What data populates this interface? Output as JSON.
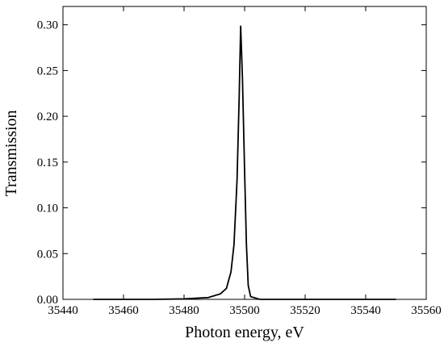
{
  "chart_data": {
    "type": "line",
    "x_label": "Photon energy, eV",
    "y_label": "Transmission",
    "xlim": [
      35440,
      35560
    ],
    "xticks": [
      35440,
      35460,
      35480,
      35500,
      35520,
      35540,
      35560
    ],
    "ylim": [
      0,
      0.32
    ],
    "yticks": [
      {
        "value": 0,
        "label": "0.00"
      },
      {
        "value": 0.05,
        "label": "0.05"
      },
      {
        "value": 0.1,
        "label": "0.10"
      },
      {
        "value": 0.15,
        "label": "0.15"
      },
      {
        "value": 0.2,
        "label": "0.20"
      },
      {
        "value": 0.25,
        "label": "0.25"
      },
      {
        "value": 0.3,
        "label": "0.30"
      }
    ],
    "series": [
      {
        "color": "#000000",
        "x": [
          35450,
          35470,
          35480,
          35488,
          35492,
          35494,
          35495.5,
          35496.5,
          35497.5,
          35498.2,
          35498.7,
          35499.3,
          35500,
          35500.6,
          35501.2,
          35502,
          35505,
          35550
        ],
        "values": [
          0,
          0,
          0.0005,
          0.002,
          0.006,
          0.012,
          0.03,
          0.06,
          0.13,
          0.22,
          0.299,
          0.24,
          0.14,
          0.06,
          0.015,
          0.003,
          0,
          0
        ]
      }
    ]
  }
}
